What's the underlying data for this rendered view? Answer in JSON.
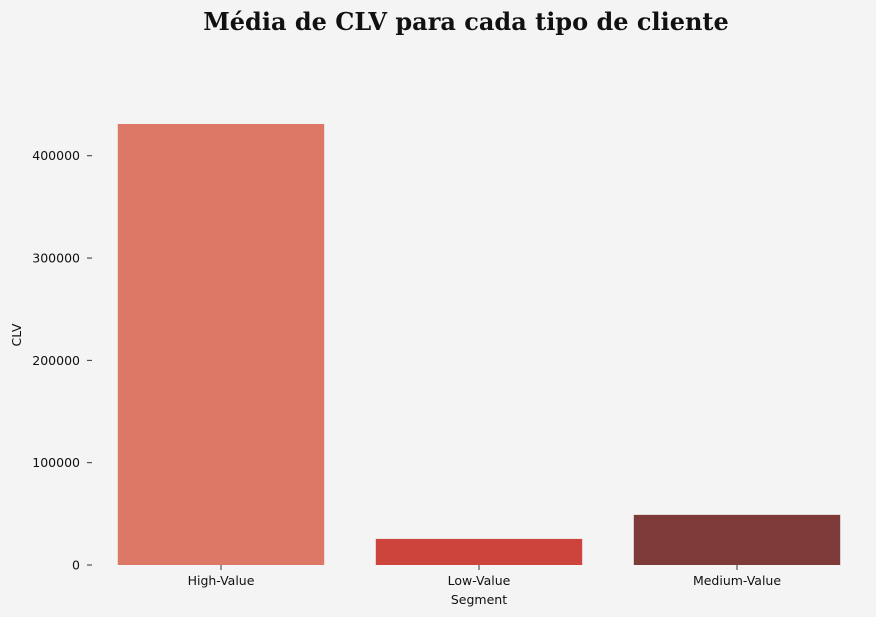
{
  "chart_data": {
    "type": "bar",
    "title": "Média de CLV para cada tipo de cliente",
    "xlabel": "Segment",
    "ylabel": "CLV",
    "categories": [
      "High-Value",
      "Low-Value",
      "Medium-Value"
    ],
    "values": [
      431000,
      25500,
      49000
    ],
    "colors": [
      "#dd7766",
      "#cc443c",
      "#7e3a38"
    ],
    "yticks": [
      0,
      100000,
      200000,
      300000,
      400000
    ],
    "ytick_labels": [
      "0",
      "100000",
      "200000",
      "300000",
      "400000"
    ],
    "ylim": [
      0,
      431000
    ],
    "grid": false
  }
}
